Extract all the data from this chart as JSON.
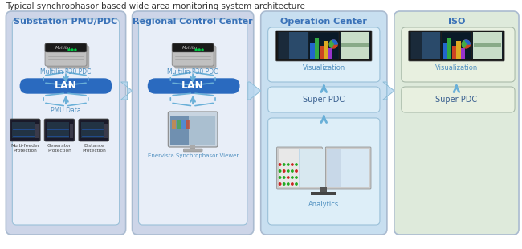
{
  "title": "Typical synchrophasor based wide area monitoring system architecture",
  "title_fontsize": 7.5,
  "bg_color": "#ffffff",
  "panel_colors": {
    "substation": "#cdd5e8",
    "regional": "#cdd5e8",
    "operation": "#c8dff0",
    "iso": "#deeadb"
  },
  "inner_box_color": "#dce8f5",
  "panel_titles": [
    "Substation PMU/PDC",
    "Regional Control Center",
    "Operation Center",
    "ISO"
  ],
  "panel_title_color": "#3a72b8",
  "lan_color": "#2a6abf",
  "lan_text_color": "#ffffff",
  "box_border_color": "#7ab0d8",
  "arrow_color": "#6ab0d8",
  "label_color": "#5090c0",
  "sub_label_color": "#555555",
  "panel_border_color": "#aabbd0",
  "inner_border_color": "#9ac0d8"
}
